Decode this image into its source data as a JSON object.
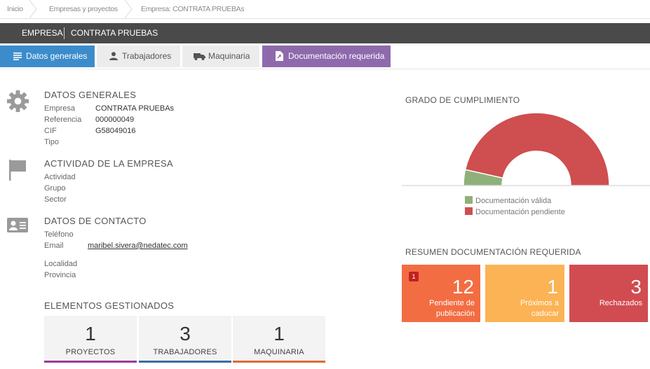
{
  "breadcrumb": {
    "items": [
      "Inicio",
      "Empresas y proyectos",
      "Empresa: CONTRATA PRUEBAs"
    ]
  },
  "company_bar": {
    "label": "EMPRESA",
    "name": "CONTRATA PRUEBAS"
  },
  "tabs": [
    {
      "label": "Datos generales",
      "icon": "list-icon"
    },
    {
      "label": "Trabajadores",
      "icon": "person-icon"
    },
    {
      "label": "Maquinaria",
      "icon": "truck-icon"
    },
    {
      "label": "Documentación requerida",
      "icon": "document-icon"
    }
  ],
  "general": {
    "title": "DATOS GENERALES",
    "rows": [
      {
        "label": "Empresa",
        "value": "CONTRATA PRUEBAs"
      },
      {
        "label": "Referencia",
        "value": "000000049"
      },
      {
        "label": "CIF",
        "value": "G58049016"
      },
      {
        "label": "Tipo",
        "value": ""
      }
    ]
  },
  "activity": {
    "title": "ACTIVIDAD DE LA EMPRESA",
    "rows": [
      {
        "label": "Actividad",
        "value": ""
      },
      {
        "label": "Grupo",
        "value": ""
      },
      {
        "label": "Sector",
        "value": ""
      }
    ]
  },
  "contact": {
    "title": "DATOS DE CONTACTO",
    "phone_label": "Teléfono",
    "email_label": "Email",
    "email": "maribel.sivera@nedatec.com",
    "locality_label": "Localidad",
    "province_label": "Provincia"
  },
  "managed": {
    "title": "ELEMENTOS GESTIONADOS",
    "cards": [
      {
        "value": "1",
        "label": "PROYECTOS",
        "color": "#9b3d96"
      },
      {
        "value": "3",
        "label": "TRABAJADORES",
        "color": "#3a6ea5"
      },
      {
        "value": "1",
        "label": "MAQUINARIA",
        "color": "#e06a36"
      }
    ]
  },
  "compliance": {
    "title": "GRADO DE CUMPLIMIENTO",
    "legend": [
      {
        "label": "Documentación válida",
        "color": "#8fb07a"
      },
      {
        "label": "Documentación pendiente",
        "color": "#cf4e50"
      }
    ]
  },
  "chart_data": {
    "type": "pie",
    "subtype": "half-donut",
    "title": "GRADO DE CUMPLIMIENTO",
    "series": [
      {
        "name": "Documentación válida",
        "value": 7
      },
      {
        "name": "Documentación pendiente",
        "value": 93
      }
    ],
    "colors": [
      "#8fb07a",
      "#cf4e50"
    ],
    "legend_position": "bottom"
  },
  "summary": {
    "title": "RESUMEN DOCUMENTACIÓN REQUERIDA",
    "cards": [
      {
        "value": "12",
        "label_line1": "Pendiente de",
        "label_line2": "publicación",
        "badge": "1",
        "color": "#f36d43"
      },
      {
        "value": "1",
        "label_line1": "Próximos a",
        "label_line2": "caducar",
        "color": "#fbb355"
      },
      {
        "value": "3",
        "label_line1": "Rechazados",
        "label_line2": "",
        "color": "#d14c50"
      }
    ]
  }
}
